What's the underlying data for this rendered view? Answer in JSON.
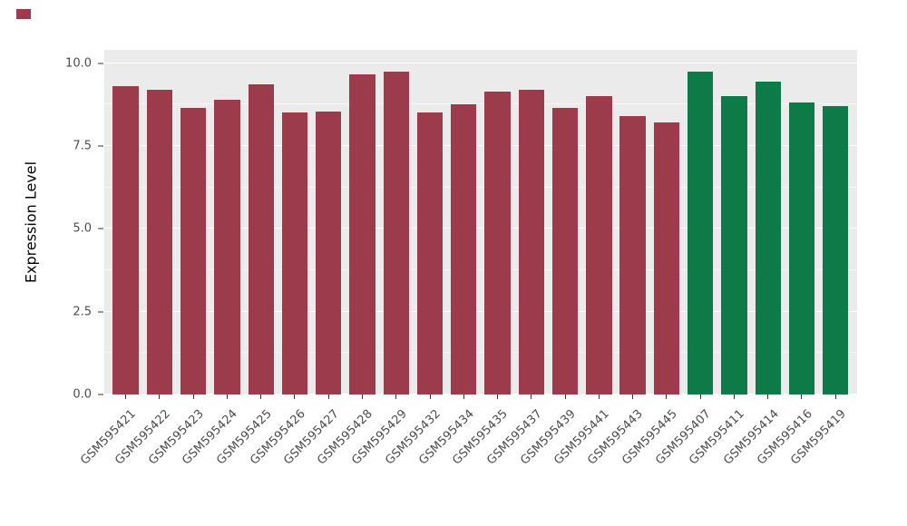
{
  "figure": {
    "background": "#ffffff",
    "panel_background": "#EBEBEB",
    "gridline_color": "#ffffff",
    "axis_text_color": "#4D4D4D"
  },
  "chart_data": {
    "type": "bar",
    "title": "",
    "xlabel": "",
    "ylabel": "Expression Level",
    "ylim": [
      0,
      10
    ],
    "yticks": [
      0,
      2.5,
      5,
      7.5,
      10
    ],
    "ytick_labels": [
      "0.0",
      "2.5",
      "5.0",
      "7.5",
      "10.0"
    ],
    "minor_ticks": [
      1.25,
      3.75,
      6.25,
      8.75
    ],
    "grid": true,
    "legend": "none",
    "group_colors": {
      "group1": "#9C3B4C",
      "group2": "#0D7A47"
    },
    "bars": [
      {
        "label": "GSM595421",
        "value": 9.3,
        "group": "group1"
      },
      {
        "label": "GSM595422",
        "value": 9.2,
        "group": "group1"
      },
      {
        "label": "GSM595423",
        "value": 8.65,
        "group": "group1"
      },
      {
        "label": "GSM595424",
        "value": 8.9,
        "group": "group1"
      },
      {
        "label": "GSM595425",
        "value": 9.35,
        "group": "group1"
      },
      {
        "label": "GSM595426",
        "value": 8.5,
        "group": "group1"
      },
      {
        "label": "GSM595427",
        "value": 8.55,
        "group": "group1"
      },
      {
        "label": "GSM595428",
        "value": 9.65,
        "group": "group1"
      },
      {
        "label": "GSM595429",
        "value": 9.75,
        "group": "group1"
      },
      {
        "label": "GSM595432",
        "value": 8.5,
        "group": "group1"
      },
      {
        "label": "GSM595434",
        "value": 8.75,
        "group": "group1"
      },
      {
        "label": "GSM595435",
        "value": 9.15,
        "group": "group1"
      },
      {
        "label": "GSM595437",
        "value": 9.2,
        "group": "group1"
      },
      {
        "label": "GSM595439",
        "value": 8.65,
        "group": "group1"
      },
      {
        "label": "GSM595441",
        "value": 9.0,
        "group": "group1"
      },
      {
        "label": "GSM595443",
        "value": 8.4,
        "group": "group1"
      },
      {
        "label": "GSM595445",
        "value": 8.2,
        "group": "group1"
      },
      {
        "label": "GSM595407",
        "value": 9.75,
        "group": "group2"
      },
      {
        "label": "GSM595411",
        "value": 9.0,
        "group": "group2"
      },
      {
        "label": "GSM595414",
        "value": 9.45,
        "group": "group2"
      },
      {
        "label": "GSM595416",
        "value": 8.8,
        "group": "group2"
      },
      {
        "label": "GSM595419",
        "value": 8.7,
        "group": "group2"
      }
    ]
  }
}
